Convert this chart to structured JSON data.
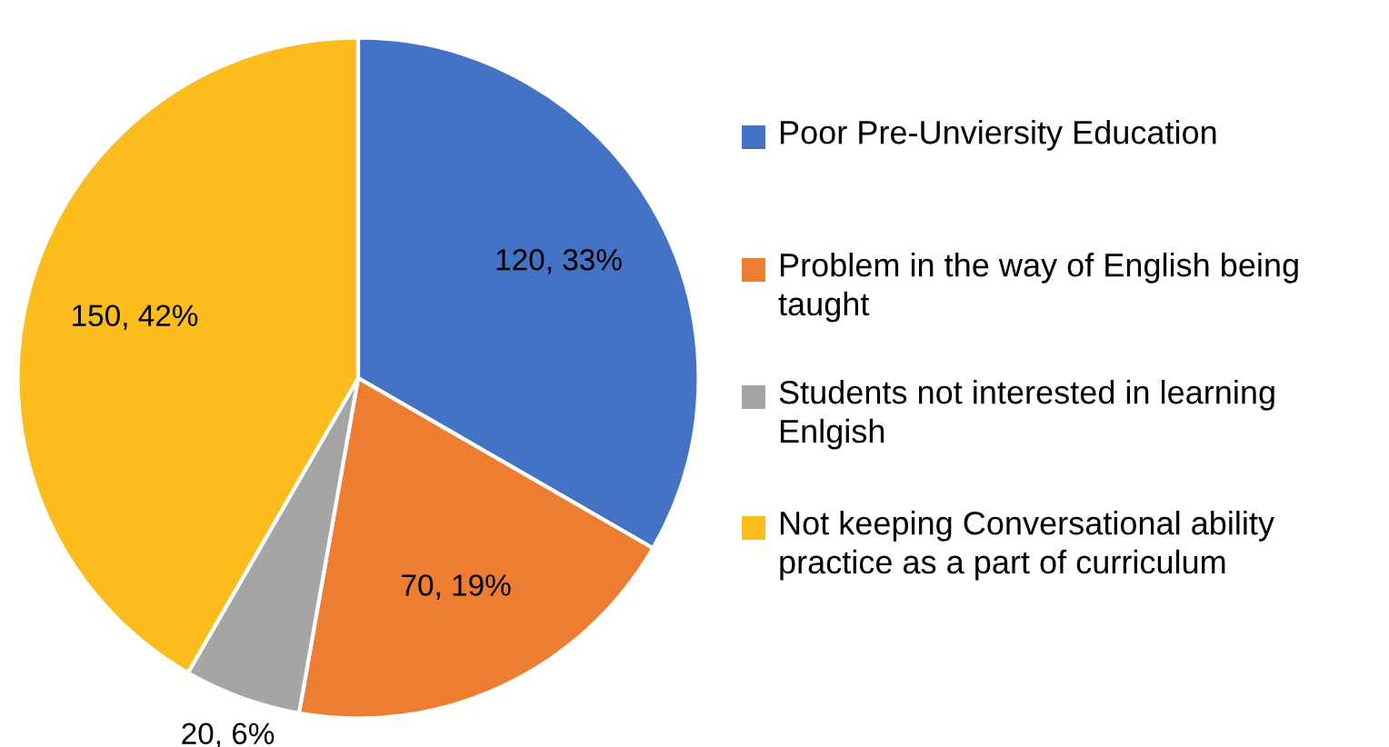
{
  "chart_data": {
    "type": "pie",
    "categories": [
      "Poor Pre-Unviersity Education",
      "Problem in the way of English being taught",
      "Students not interested in learning Enlgish",
      "Not keeping Conversational ability practice as a part of curriculum"
    ],
    "values": [
      120,
      70,
      20,
      150
    ],
    "colors": [
      "#4472c4",
      "#ed7d31",
      "#a5a5a5",
      "#fbbc1c"
    ],
    "value_labels": [
      "120, 33%",
      "70, 19%",
      "20, 6%",
      "150, 42%"
    ],
    "legend": "right"
  }
}
